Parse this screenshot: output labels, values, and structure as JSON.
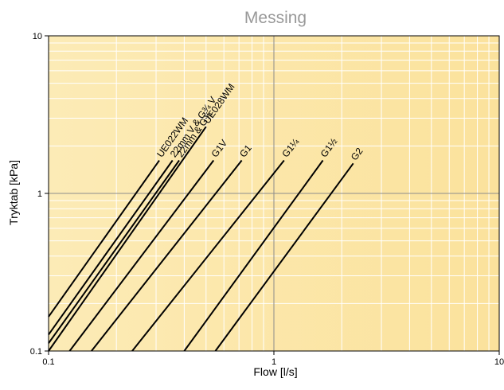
{
  "chart_data": {
    "type": "line",
    "title": "Messing",
    "xlabel": "Flow [l/s]",
    "ylabel": "Tryktab [kPa]",
    "x_scale": "log",
    "y_scale": "log",
    "xlim": [
      0.1,
      10
    ],
    "ylim": [
      0.1,
      10
    ],
    "x_ticks": [
      {
        "value": 0.1,
        "label": "0.1"
      },
      {
        "value": 1,
        "label": "1"
      },
      {
        "value": 10,
        "label": "10"
      }
    ],
    "y_ticks": [
      {
        "value": 0.1,
        "label": "0.1"
      },
      {
        "value": 1,
        "label": "1"
      },
      {
        "value": 10,
        "label": "10"
      }
    ],
    "grid": true,
    "colors": {
      "background_low": "#FCEBB6",
      "background_high": "#FBE29C",
      "line": "#000000",
      "major_grid": "#8C8C8C",
      "minor_grid": "#FFFFFF",
      "title": "#999999"
    },
    "series": [
      {
        "name": "UE022WM",
        "x": [
          0.1,
          0.31
        ],
        "y": [
          0.165,
          1.62
        ]
      },
      {
        "name": "22mm V & G¾ V",
        "x": [
          0.1,
          0.355
        ],
        "y": [
          0.127,
          1.62
        ]
      },
      {
        "name": "22mm & G¾",
        "x": [
          0.1,
          0.38
        ],
        "y": [
          0.112,
          1.62
        ]
      },
      {
        "name": "UE028WM",
        "x": [
          0.1,
          0.5
        ],
        "y": [
          0.1,
          2.65
        ]
      },
      {
        "name": "G1V",
        "x": [
          0.124,
          0.54
        ],
        "y": [
          0.1,
          1.62
        ]
      },
      {
        "name": "G1",
        "x": [
          0.155,
          0.72
        ],
        "y": [
          0.1,
          1.62
        ]
      },
      {
        "name": "G1¼",
        "x": [
          0.235,
          1.11
        ],
        "y": [
          0.1,
          1.62
        ]
      },
      {
        "name": "G1½",
        "x": [
          0.4,
          1.65
        ],
        "y": [
          0.1,
          1.62
        ]
      },
      {
        "name": "G2",
        "x": [
          0.55,
          2.25
        ],
        "y": [
          0.1,
          1.55
        ]
      }
    ]
  }
}
